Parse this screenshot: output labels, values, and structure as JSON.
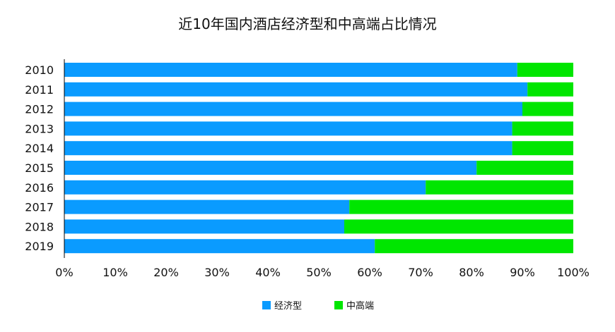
{
  "chart_data": {
    "type": "bar",
    "orientation": "horizontal",
    "stacked": true,
    "percent": true,
    "title": "近10年国内酒店经济型和中高端占比情况",
    "categories": [
      "2010",
      "2011",
      "2012",
      "2013",
      "2014",
      "2015",
      "2016",
      "2017",
      "2018",
      "2019"
    ],
    "series": [
      {
        "name": "经济型",
        "color": "#0a9bff",
        "values": [
          89,
          91,
          90,
          88,
          88,
          81,
          71,
          56,
          55,
          61
        ]
      },
      {
        "name": "中高端",
        "color": "#00e600",
        "values": [
          11,
          9,
          10,
          12,
          12,
          19,
          29,
          44,
          45,
          39
        ]
      }
    ],
    "xlim": [
      0,
      100
    ],
    "x_ticks": [
      "0%",
      "10%",
      "20%",
      "30%",
      "40%",
      "50%",
      "60%",
      "70%",
      "80%",
      "90%",
      "100%"
    ],
    "grid": false,
    "legend_position": "bottom"
  }
}
